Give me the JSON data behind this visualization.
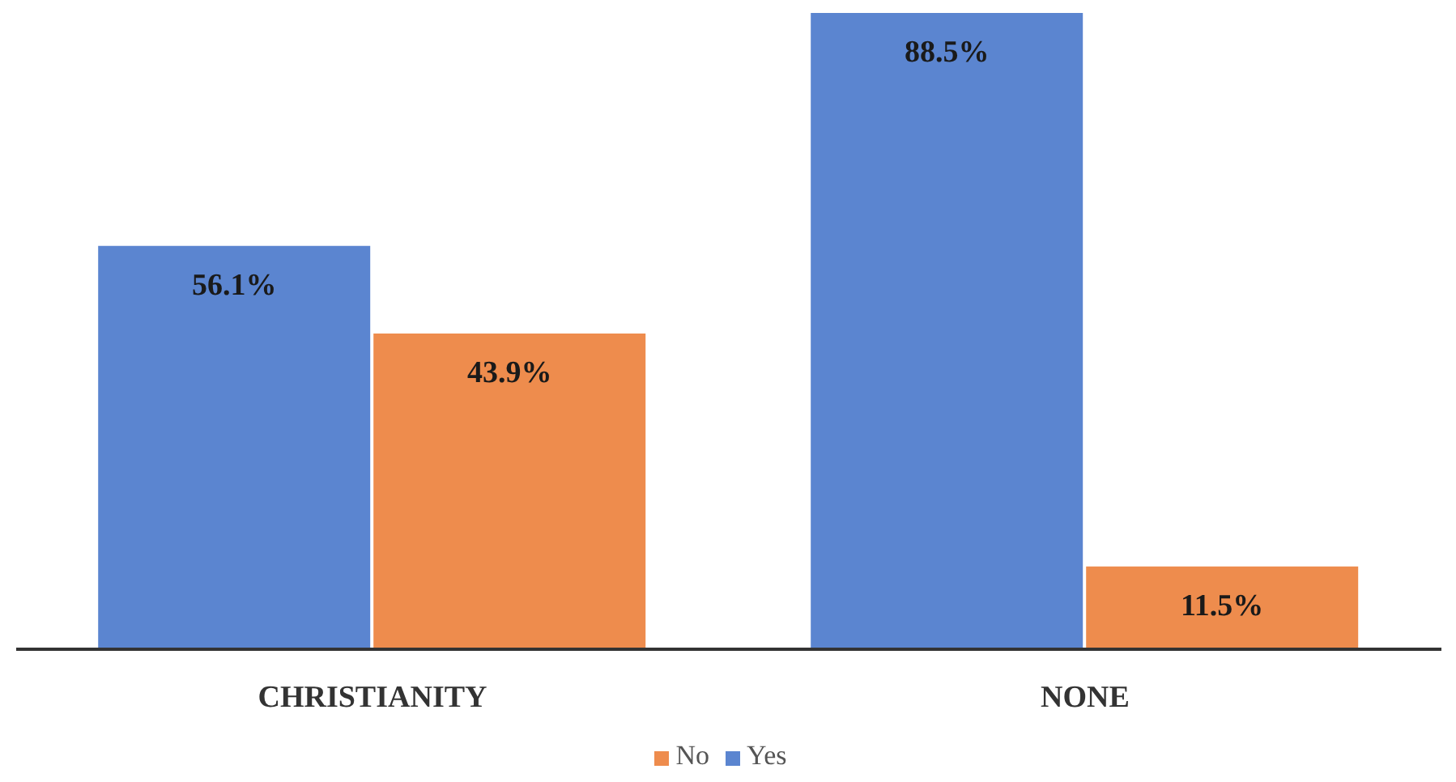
{
  "chart_data": {
    "type": "bar",
    "categories": [
      "CHRISTIANITY",
      "NONE"
    ],
    "series": [
      {
        "name": "Yes",
        "color": "#5b85d0",
        "values": [
          56.1,
          88.5
        ],
        "value_labels": [
          "56.1%",
          "88.5%"
        ]
      },
      {
        "name": "No",
        "color": "#ee8c4d",
        "values": [
          43.9,
          11.5
        ],
        "value_labels": [
          "43.9%",
          "11.5%"
        ]
      }
    ],
    "legend": "bottom",
    "grid": false
  }
}
